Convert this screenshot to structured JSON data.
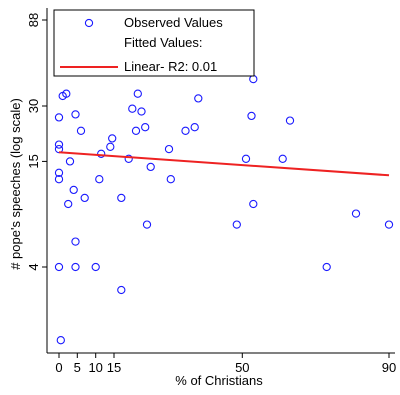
{
  "chart_data": {
    "type": "scatter",
    "title": "",
    "xlabel": "% of Christians",
    "ylabel": "# pope's speeches (log scale)",
    "y_scale": "log",
    "xlim": [
      -2,
      91
    ],
    "ylim": [
      1.45,
      88
    ],
    "x_ticks": [
      {
        "value": 0,
        "label": "0"
      },
      {
        "value": 5,
        "label": "5"
      },
      {
        "value": 10,
        "label": "10"
      },
      {
        "value": 15,
        "label": "15"
      },
      {
        "value": 50,
        "label": "50"
      },
      {
        "value": 90,
        "label": "90"
      }
    ],
    "y_ticks": [
      {
        "value": 4,
        "label": "4"
      },
      {
        "value": 15,
        "label": "15"
      },
      {
        "value": 30,
        "label": "30"
      },
      {
        "value": 88,
        "label": "88"
      }
    ],
    "colors": {
      "points": "#1a1aff",
      "fit_line": "#ee2222"
    },
    "legend": {
      "position": "top-left",
      "entries": [
        {
          "label": "Observed Values",
          "marker": "circle"
        },
        {
          "label": "Fitted Values:",
          "marker": "none"
        },
        {
          "label": "Linear- R2:  0.01",
          "marker": "line"
        }
      ]
    },
    "series": [
      {
        "type": "scatter",
        "points": [
          {
            "x": 0,
            "y": 26
          },
          {
            "x": 0,
            "y": 18.5
          },
          {
            "x": 0,
            "y": 17.5
          },
          {
            "x": 0,
            "y": 13
          },
          {
            "x": 0,
            "y": 12
          },
          {
            "x": 0,
            "y": 4
          },
          {
            "x": 0.5,
            "y": 1.6
          },
          {
            "x": 0.5,
            "y": 48
          },
          {
            "x": 1,
            "y": 34
          },
          {
            "x": 2,
            "y": 35
          },
          {
            "x": 2.5,
            "y": 8.8
          },
          {
            "x": 3,
            "y": 15
          },
          {
            "x": 4,
            "y": 10.5
          },
          {
            "x": 4.5,
            "y": 27
          },
          {
            "x": 4.5,
            "y": 5.5
          },
          {
            "x": 4.5,
            "y": 4
          },
          {
            "x": 6,
            "y": 22
          },
          {
            "x": 7,
            "y": 9.5
          },
          {
            "x": 10,
            "y": 4
          },
          {
            "x": 11,
            "y": 12
          },
          {
            "x": 11.5,
            "y": 16.5
          },
          {
            "x": 14,
            "y": 18
          },
          {
            "x": 14.5,
            "y": 20
          },
          {
            "x": 17,
            "y": 9.5
          },
          {
            "x": 17,
            "y": 3
          },
          {
            "x": 19,
            "y": 15.5
          },
          {
            "x": 20,
            "y": 29
          },
          {
            "x": 21,
            "y": 22
          },
          {
            "x": 21.5,
            "y": 35
          },
          {
            "x": 22.5,
            "y": 28
          },
          {
            "x": 23.5,
            "y": 23
          },
          {
            "x": 24,
            "y": 6.8
          },
          {
            "x": 25,
            "y": 14
          },
          {
            "x": 30,
            "y": 17.5
          },
          {
            "x": 30.5,
            "y": 12
          },
          {
            "x": 34.5,
            "y": 22
          },
          {
            "x": 37,
            "y": 23
          },
          {
            "x": 38,
            "y": 33
          },
          {
            "x": 48.5,
            "y": 6.8
          },
          {
            "x": 51,
            "y": 15.5
          },
          {
            "x": 52.5,
            "y": 26.5
          },
          {
            "x": 53,
            "y": 42
          },
          {
            "x": 53,
            "y": 8.8
          },
          {
            "x": 61,
            "y": 15.5
          },
          {
            "x": 63,
            "y": 25
          },
          {
            "x": 73,
            "y": 4
          },
          {
            "x": 81,
            "y": 7.8
          },
          {
            "x": 90,
            "y": 6.8
          }
        ]
      },
      {
        "type": "line",
        "name": "Linear- R2:  0.01",
        "points": [
          {
            "x": 0,
            "y": 16.8
          },
          {
            "x": 90,
            "y": 12.6
          }
        ]
      }
    ]
  }
}
